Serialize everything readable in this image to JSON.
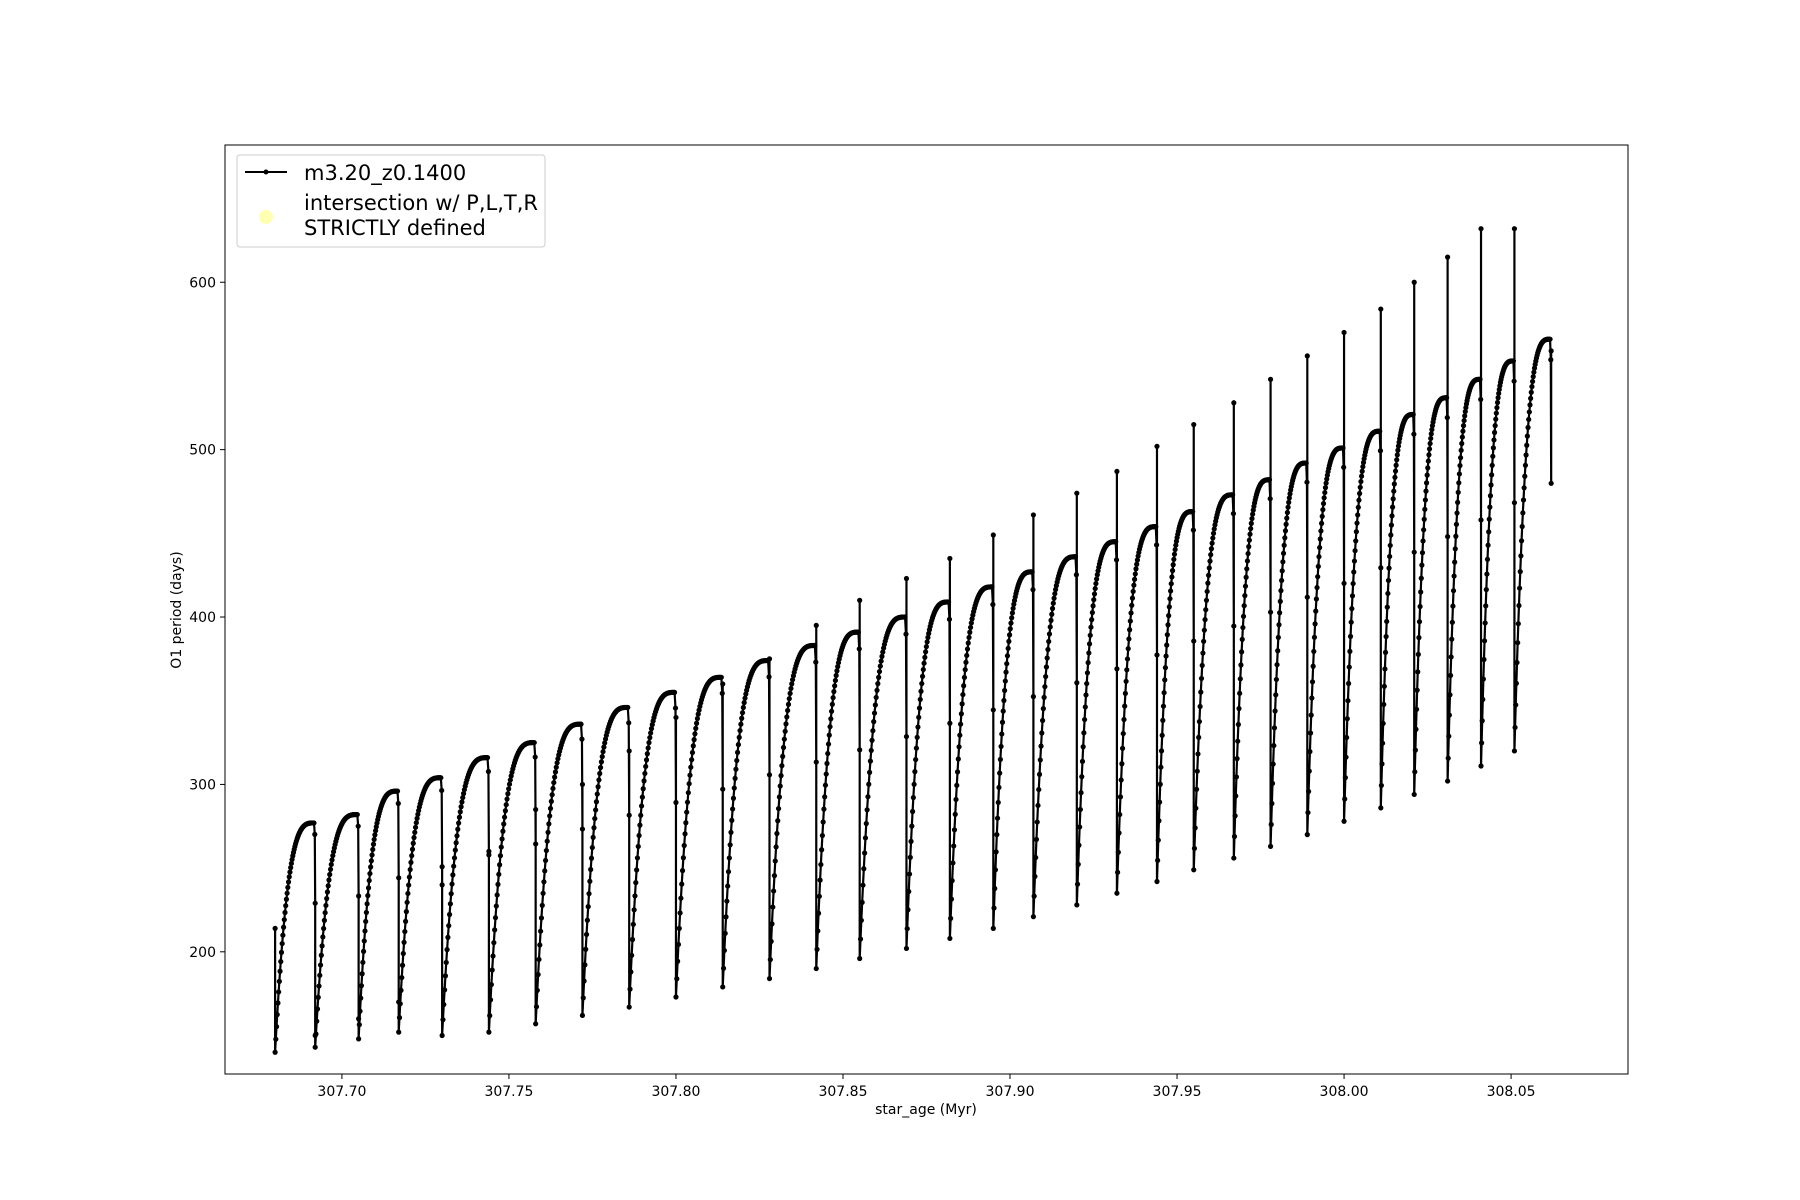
{
  "chart_data": {
    "type": "line",
    "title": "",
    "xlabel": "star_age (Myr)",
    "ylabel": "O1 period (days)",
    "xlim": [
      307.665,
      308.085
    ],
    "ylim": [
      127,
      682
    ],
    "xticks": [
      307.7,
      307.75,
      307.8,
      307.85,
      307.9,
      307.95,
      308.0,
      308.05
    ],
    "xtick_labels": [
      "307.70",
      "307.75",
      "307.80",
      "307.85",
      "307.90",
      "307.95",
      "308.00",
      "308.05"
    ],
    "yticks": [
      200,
      300,
      400,
      500,
      600
    ],
    "ytick_labels": [
      "200",
      "300",
      "400",
      "500",
      "600"
    ],
    "grid": false,
    "legend_position": "top-left",
    "series": [
      {
        "name": "m3.20_z0.1400",
        "color": "#000000",
        "marker": "dot",
        "pulses": [
          {
            "start": 307.68,
            "end": 307.692,
            "min": 140,
            "peak": 277,
            "spike": 214
          },
          {
            "start": 307.692,
            "end": 307.705,
            "min": 143,
            "peak": 282,
            "spike": 150
          },
          {
            "start": 307.705,
            "end": 307.717,
            "min": 148,
            "peak": 296,
            "spike": 160
          },
          {
            "start": 307.717,
            "end": 307.73,
            "min": 152,
            "peak": 304,
            "spike": 170
          },
          {
            "start": 307.73,
            "end": 307.744,
            "min": 150,
            "peak": 316,
            "spike": 240
          },
          {
            "start": 307.744,
            "end": 307.758,
            "min": 152,
            "peak": 325,
            "spike": 260
          },
          {
            "start": 307.758,
            "end": 307.772,
            "min": 157,
            "peak": 336,
            "spike": 285
          },
          {
            "start": 307.772,
            "end": 307.786,
            "min": 162,
            "peak": 346,
            "spike": 300
          },
          {
            "start": 307.786,
            "end": 307.8,
            "min": 167,
            "peak": 355,
            "spike": 320
          },
          {
            "start": 307.8,
            "end": 307.814,
            "min": 173,
            "peak": 364,
            "spike": 340
          },
          {
            "start": 307.814,
            "end": 307.828,
            "min": 179,
            "peak": 374,
            "spike": 360
          },
          {
            "start": 307.828,
            "end": 307.842,
            "min": 184,
            "peak": 383,
            "spike": 375
          },
          {
            "start": 307.842,
            "end": 307.855,
            "min": 190,
            "peak": 391,
            "spike": 395
          },
          {
            "start": 307.855,
            "end": 307.869,
            "min": 196,
            "peak": 400,
            "spike": 410
          },
          {
            "start": 307.869,
            "end": 307.882,
            "min": 202,
            "peak": 409,
            "spike": 423
          },
          {
            "start": 307.882,
            "end": 307.895,
            "min": 208,
            "peak": 418,
            "spike": 435
          },
          {
            "start": 307.895,
            "end": 307.907,
            "min": 214,
            "peak": 427,
            "spike": 449
          },
          {
            "start": 307.907,
            "end": 307.92,
            "min": 221,
            "peak": 436,
            "spike": 461
          },
          {
            "start": 307.92,
            "end": 307.932,
            "min": 228,
            "peak": 445,
            "spike": 474
          },
          {
            "start": 307.932,
            "end": 307.944,
            "min": 235,
            "peak": 454,
            "spike": 487
          },
          {
            "start": 307.944,
            "end": 307.955,
            "min": 242,
            "peak": 463,
            "spike": 502
          },
          {
            "start": 307.955,
            "end": 307.967,
            "min": 249,
            "peak": 473,
            "spike": 515
          },
          {
            "start": 307.967,
            "end": 307.978,
            "min": 256,
            "peak": 482,
            "spike": 528
          },
          {
            "start": 307.978,
            "end": 307.989,
            "min": 263,
            "peak": 492,
            "spike": 542
          },
          {
            "start": 307.989,
            "end": 308.0,
            "min": 270,
            "peak": 501,
            "spike": 556
          },
          {
            "start": 308.0,
            "end": 308.011,
            "min": 278,
            "peak": 511,
            "spike": 570
          },
          {
            "start": 308.011,
            "end": 308.021,
            "min": 286,
            "peak": 521,
            "spike": 584
          },
          {
            "start": 308.021,
            "end": 308.031,
            "min": 294,
            "peak": 531,
            "spike": 600
          },
          {
            "start": 308.031,
            "end": 308.041,
            "min": 302,
            "peak": 542,
            "spike": 615
          },
          {
            "start": 308.041,
            "end": 308.051,
            "min": 311,
            "peak": 553,
            "spike": 632
          },
          {
            "start": 308.051,
            "end": 308.062,
            "min": 320,
            "peak": 566,
            "spike": 632
          }
        ],
        "final_x": 308.062,
        "final_y": 559
      },
      {
        "name": "intersection w/ P,L,T,R STRICTLY defined",
        "name_lines": [
          "intersection w/ P,L,T,R",
          "STRICTLY defined"
        ],
        "color": "#ffffb3",
        "marker": "circle",
        "points": []
      }
    ]
  }
}
